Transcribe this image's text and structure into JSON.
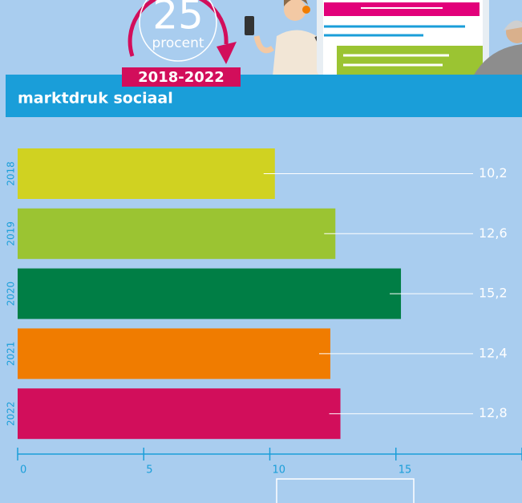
{
  "header": {
    "badge_number": "25",
    "badge_unit": "procent",
    "period": "2018-2022"
  },
  "chart_data": {
    "type": "barh",
    "title": "marktdruk sociaal",
    "categories": [
      "2018",
      "2019",
      "2020",
      "2021",
      "2022"
    ],
    "values": [
      10.2,
      12.6,
      15.2,
      12.4,
      12.8
    ],
    "value_labels": [
      "10,2",
      "12,6",
      "15,2",
      "12,4",
      "12,8"
    ],
    "colors": [
      "#d0d221",
      "#9bc432",
      "#007e45",
      "#f07c00",
      "#d20e5b"
    ],
    "xlim": [
      0,
      20
    ],
    "xticks": [
      0,
      5,
      10,
      15,
      20
    ]
  }
}
